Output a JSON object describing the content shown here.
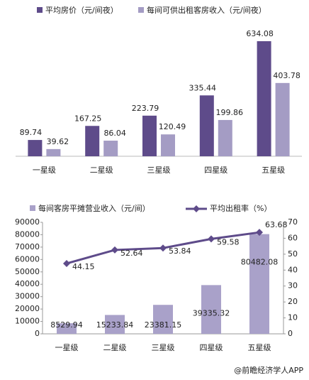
{
  "chart_data": [
    {
      "type": "bar",
      "categories": [
        "一星级",
        "二星级",
        "三星级",
        "四星级",
        "五星级"
      ],
      "series": [
        {
          "name": "平均房价（元/间夜）",
          "color": "#5e4b8a",
          "values": [
            89.74,
            167.25,
            223.79,
            335.44,
            634.08
          ]
        },
        {
          "name": "每间可供出租客房收入（元/间夜）",
          "color": "#a49cc4",
          "values": [
            39.62,
            86.04,
            120.49,
            199.86,
            403.78
          ]
        }
      ]
    },
    {
      "type": "bar-line",
      "categories": [
        "一星级",
        "二星级",
        "三星级",
        "四星级",
        "五星级"
      ],
      "series": [
        {
          "name": "每间客房平摊营业收入（元/间）",
          "color": "#a9a1c9",
          "values": [
            8529.94,
            15233.84,
            23381.15,
            39335.32,
            80482.08
          ]
        },
        {
          "name": "平均出租率（%）",
          "color": "#5e4b8a",
          "axis": "y2",
          "values": [
            44.15,
            52.64,
            53.84,
            59.58,
            63.68
          ]
        }
      ],
      "ylim": [
        0,
        90000
      ],
      "yticks": [
        0,
        10000,
        20000,
        30000,
        40000,
        50000,
        60000,
        70000,
        80000,
        90000
      ],
      "y2lim": [
        0,
        70
      ],
      "y2ticks": [
        0,
        10,
        20,
        30,
        40,
        50,
        60,
        70
      ],
      "source": "@前瞻经济学人APP"
    }
  ]
}
